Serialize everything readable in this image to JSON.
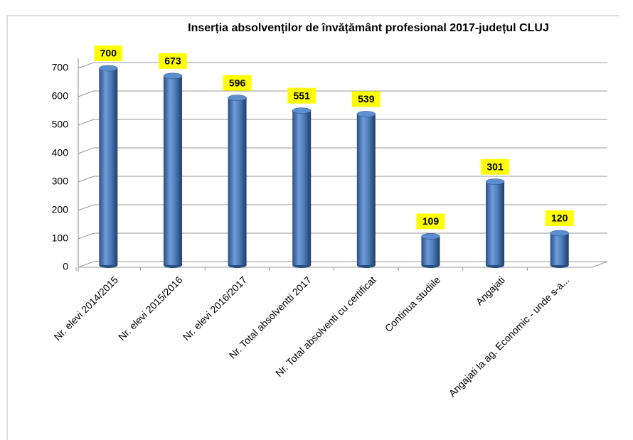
{
  "chart_data": {
    "type": "bar",
    "title": "Inserția absolvenților de învățământ profesional  2017-județul CLUJ",
    "categories": [
      "Nr. elevi 2014/2015",
      "Nr. elevi 2015/2016",
      "Nr. elevi 2016/2017",
      "Nr. Total absolventti 2017",
      "Nr. Total absolventi cu certificat",
      "Continua studiile",
      "Angajati",
      "Angajati  la ag. Economic - unde s-a..."
    ],
    "values": [
      700,
      673,
      596,
      551,
      539,
      109,
      301,
      120
    ],
    "color": "#4f81bd",
    "label_color": "#ffff00",
    "ylim": [
      0,
      700
    ],
    "yticks": [
      0,
      100,
      200,
      300,
      400,
      500,
      600,
      700
    ],
    "grid": true
  }
}
